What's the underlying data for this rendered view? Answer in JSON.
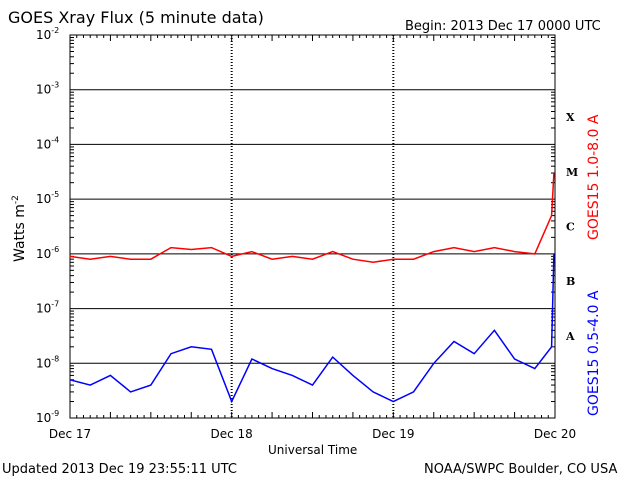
{
  "title": "GOES Xray Flux (5 minute data)",
  "begin": "Begin:  2013 Dec 17 0000 UTC",
  "updated": "Updated 2013 Dec 19 23:55:11 UTC",
  "credit": "NOAA/SWPC Boulder, CO USA",
  "colors": {
    "long": "#ff0000",
    "short": "#0000ff",
    "grid": "#000000"
  },
  "chart_data": {
    "type": "line",
    "title": "GOES Xray Flux (5 minute data)",
    "xlabel": "Universal Time",
    "ylabel": "Watts m",
    "ylabel_sup": "-2",
    "yscale": "log",
    "ylim": [
      1e-09,
      0.01
    ],
    "xlim": [
      "2013-12-17 00:00",
      "2013-12-20 00:00"
    ],
    "x_ticks": [
      "Dec 17",
      "Dec 18",
      "Dec 19",
      "Dec 20"
    ],
    "y_ticks": [
      {
        "base": "10",
        "exp": "-9"
      },
      {
        "base": "10",
        "exp": "-8"
      },
      {
        "base": "10",
        "exp": "-7"
      },
      {
        "base": "10",
        "exp": "-6"
      },
      {
        "base": "10",
        "exp": "-5"
      },
      {
        "base": "10",
        "exp": "-4"
      },
      {
        "base": "10",
        "exp": "-3"
      },
      {
        "base": "10",
        "exp": "-2"
      }
    ],
    "flare_classes": [
      "A",
      "B",
      "C",
      "M",
      "X"
    ],
    "grid": true,
    "series": [
      {
        "name": "GOES15 1.0-8.0 A",
        "color": "#ff0000",
        "x": [
          "2013-12-17 00:00",
          "2013-12-17 03:00",
          "2013-12-17 06:00",
          "2013-12-17 09:00",
          "2013-12-17 12:00",
          "2013-12-17 15:00",
          "2013-12-17 18:00",
          "2013-12-17 21:00",
          "2013-12-18 00:00",
          "2013-12-18 03:00",
          "2013-12-18 06:00",
          "2013-12-18 09:00",
          "2013-12-18 12:00",
          "2013-12-18 15:00",
          "2013-12-18 18:00",
          "2013-12-18 21:00",
          "2013-12-19 00:00",
          "2013-12-19 03:00",
          "2013-12-19 06:00",
          "2013-12-19 09:00",
          "2013-12-19 12:00",
          "2013-12-19 15:00",
          "2013-12-19 18:00",
          "2013-12-19 21:00",
          "2013-12-19 23:30",
          "2013-12-19 23:50"
        ],
        "y": [
          9e-07,
          8e-07,
          9e-07,
          8e-07,
          8e-07,
          1.3e-06,
          1.2e-06,
          1.3e-06,
          9e-07,
          1.1e-06,
          8e-07,
          9e-07,
          8e-07,
          1.1e-06,
          8e-07,
          7e-07,
          8e-07,
          8e-07,
          1.1e-06,
          1.3e-06,
          1.1e-06,
          1.3e-06,
          1.1e-06,
          1e-06,
          5e-06,
          3e-05
        ]
      },
      {
        "name": "GOES15 0.5-4.0 A",
        "color": "#0000ff",
        "x": [
          "2013-12-17 00:00",
          "2013-12-17 03:00",
          "2013-12-17 06:00",
          "2013-12-17 09:00",
          "2013-12-17 12:00",
          "2013-12-17 15:00",
          "2013-12-17 18:00",
          "2013-12-17 21:00",
          "2013-12-18 00:00",
          "2013-12-18 03:00",
          "2013-12-18 06:00",
          "2013-12-18 09:00",
          "2013-12-18 12:00",
          "2013-12-18 15:00",
          "2013-12-18 18:00",
          "2013-12-18 21:00",
          "2013-12-19 00:00",
          "2013-12-19 03:00",
          "2013-12-19 06:00",
          "2013-12-19 09:00",
          "2013-12-19 12:00",
          "2013-12-19 15:00",
          "2013-12-19 18:00",
          "2013-12-19 21:00",
          "2013-12-19 23:30",
          "2013-12-19 23:50"
        ],
        "y": [
          5e-09,
          4e-09,
          6e-09,
          3e-09,
          4e-09,
          1.5e-08,
          2e-08,
          1.8e-08,
          2e-09,
          1.2e-08,
          8e-09,
          6e-09,
          4e-09,
          1.3e-08,
          6e-09,
          3e-09,
          2e-09,
          3e-09,
          1e-08,
          2.5e-08,
          1.5e-08,
          4e-08,
          1.2e-08,
          8e-09,
          2e-08,
          1e-06
        ]
      }
    ]
  }
}
